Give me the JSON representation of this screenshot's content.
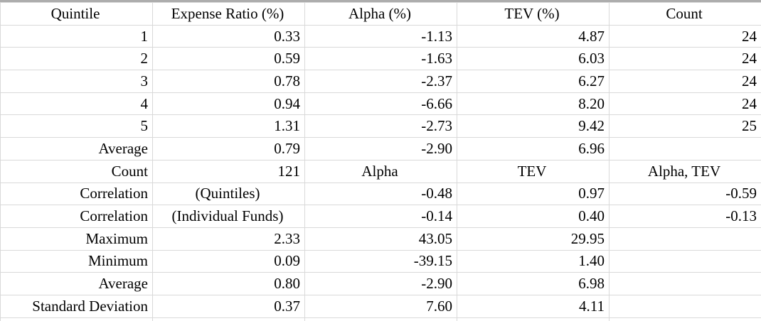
{
  "styles": {
    "grid_color": "#d9d9d9",
    "top_border_color": "#adadad",
    "text_color": "#000000",
    "background_color": "#ffffff"
  },
  "table": {
    "columns": [
      "Quintile",
      "Expense Ratio (%)",
      "Alpha (%)",
      "TEV (%)",
      "Count"
    ],
    "rows": [
      {
        "cells": [
          {
            "text": "1",
            "align": "right",
            "bold": false
          },
          {
            "text": "0.33",
            "align": "right",
            "bold": false
          },
          {
            "text": "-1.13",
            "align": "right",
            "bold": false
          },
          {
            "text": "4.87",
            "align": "right",
            "bold": false
          },
          {
            "text": "24",
            "align": "right",
            "bold": false
          }
        ]
      },
      {
        "cells": [
          {
            "text": "2",
            "align": "right",
            "bold": false
          },
          {
            "text": "0.59",
            "align": "right",
            "bold": false
          },
          {
            "text": "-1.63",
            "align": "right",
            "bold": false
          },
          {
            "text": "6.03",
            "align": "right",
            "bold": false
          },
          {
            "text": "24",
            "align": "right",
            "bold": false
          }
        ]
      },
      {
        "cells": [
          {
            "text": "3",
            "align": "right",
            "bold": false
          },
          {
            "text": "0.78",
            "align": "right",
            "bold": false
          },
          {
            "text": "-2.37",
            "align": "right",
            "bold": false
          },
          {
            "text": "6.27",
            "align": "right",
            "bold": false
          },
          {
            "text": "24",
            "align": "right",
            "bold": false
          }
        ]
      },
      {
        "cells": [
          {
            "text": "4",
            "align": "right",
            "bold": false
          },
          {
            "text": "0.94",
            "align": "right",
            "bold": false
          },
          {
            "text": "-6.66",
            "align": "right",
            "bold": false
          },
          {
            "text": "8.20",
            "align": "right",
            "bold": false
          },
          {
            "text": "24",
            "align": "right",
            "bold": false
          }
        ]
      },
      {
        "cells": [
          {
            "text": "5",
            "align": "right",
            "bold": false
          },
          {
            "text": "1.31",
            "align": "right",
            "bold": false
          },
          {
            "text": "-2.73",
            "align": "right",
            "bold": false
          },
          {
            "text": "9.42",
            "align": "right",
            "bold": false
          },
          {
            "text": "25",
            "align": "right",
            "bold": false
          }
        ]
      },
      {
        "cells": [
          {
            "text": "Average",
            "align": "right",
            "bold": true
          },
          {
            "text": "0.79",
            "align": "right",
            "bold": false
          },
          {
            "text": "-2.90",
            "align": "right",
            "bold": false
          },
          {
            "text": "6.96",
            "align": "right",
            "bold": false
          },
          {
            "text": "",
            "align": "right",
            "bold": false
          }
        ]
      },
      {
        "cells": [
          {
            "text": "Count",
            "align": "right",
            "bold": true
          },
          {
            "text": "121",
            "align": "right",
            "bold": false
          },
          {
            "text": "Alpha",
            "align": "center",
            "bold": true
          },
          {
            "text": "TEV",
            "align": "center",
            "bold": true
          },
          {
            "text": "Alpha, TEV",
            "align": "center",
            "bold": true
          }
        ]
      },
      {
        "cells": [
          {
            "text": "Correlation",
            "align": "right",
            "bold": true
          },
          {
            "text": "(Quintiles)",
            "align": "center",
            "bold": false
          },
          {
            "text": "-0.48",
            "align": "right",
            "bold": false
          },
          {
            "text": "0.97",
            "align": "right",
            "bold": false
          },
          {
            "text": "-0.59",
            "align": "right",
            "bold": false
          }
        ]
      },
      {
        "cells": [
          {
            "text": "Correlation",
            "align": "right",
            "bold": true
          },
          {
            "text": "(Individual Funds)",
            "align": "center",
            "bold": false
          },
          {
            "text": "-0.14",
            "align": "right",
            "bold": false
          },
          {
            "text": "0.40",
            "align": "right",
            "bold": false
          },
          {
            "text": "-0.13",
            "align": "right",
            "bold": false
          }
        ]
      },
      {
        "cells": [
          {
            "text": "Maximum",
            "align": "right",
            "bold": true
          },
          {
            "text": "2.33",
            "align": "right",
            "bold": false
          },
          {
            "text": "43.05",
            "align": "right",
            "bold": false
          },
          {
            "text": "29.95",
            "align": "right",
            "bold": false
          },
          {
            "text": "",
            "align": "right",
            "bold": false
          }
        ]
      },
      {
        "cells": [
          {
            "text": "Minimum",
            "align": "right",
            "bold": true
          },
          {
            "text": "0.09",
            "align": "right",
            "bold": false
          },
          {
            "text": "-39.15",
            "align": "right",
            "bold": false
          },
          {
            "text": "1.40",
            "align": "right",
            "bold": false
          },
          {
            "text": "",
            "align": "right",
            "bold": false
          }
        ]
      },
      {
        "cells": [
          {
            "text": "Average",
            "align": "right",
            "bold": true
          },
          {
            "text": "0.80",
            "align": "right",
            "bold": false
          },
          {
            "text": "-2.90",
            "align": "right",
            "bold": false
          },
          {
            "text": "6.98",
            "align": "right",
            "bold": false
          },
          {
            "text": "",
            "align": "right",
            "bold": false
          }
        ]
      },
      {
        "cells": [
          {
            "text": "Standard Deviation",
            "align": "right",
            "bold": true
          },
          {
            "text": "0.37",
            "align": "right",
            "bold": false
          },
          {
            "text": "7.60",
            "align": "right",
            "bold": false
          },
          {
            "text": "4.11",
            "align": "right",
            "bold": false
          },
          {
            "text": "",
            "align": "right",
            "bold": false
          }
        ]
      }
    ]
  }
}
